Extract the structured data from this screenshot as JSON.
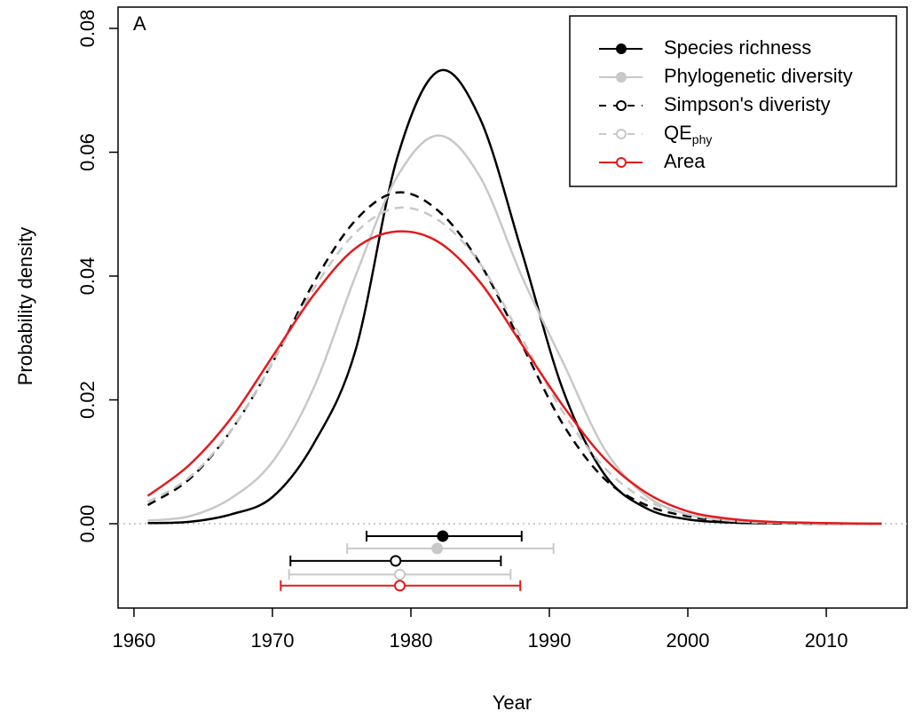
{
  "chart_data": {
    "type": "line",
    "panel_label": "A",
    "x_label": "Year",
    "y_label": "Probability density",
    "xlim": [
      1958.85,
      2015.83
    ],
    "ylim": [
      -0.01362,
      0.08344
    ],
    "xticks": [
      1960,
      1970,
      1980,
      1990,
      2000,
      2010
    ],
    "yticks": [
      {
        "value": 0,
        "label": "0.00"
      },
      {
        "value": 0.02,
        "label": "0.02"
      },
      {
        "value": 0.04,
        "label": "0.04"
      },
      {
        "value": 0.06,
        "label": "0.06"
      },
      {
        "value": 0.08,
        "label": "0.08"
      }
    ],
    "reference_line": 0,
    "legend_position": "top-right",
    "x": [
      1961,
      1964,
      1967,
      1970,
      1973,
      1976,
      1979,
      1982,
      1985,
      1988,
      1991,
      1994,
      1997,
      2000,
      2003,
      2006,
      2010,
      2014
    ],
    "series": [
      {
        "name": "Species richness",
        "color": "#000000",
        "dash": false,
        "marker": "filled",
        "values": [
          0.0001,
          0.0003,
          0.0015,
          0.0043,
          0.013,
          0.028,
          0.059,
          0.0731,
          0.0654,
          0.044,
          0.0215,
          0.0079,
          0.0025,
          0.0007,
          0.0002,
          5e-05,
          0,
          0
        ],
        "point": [
          1982.3,
          -0.002
        ],
        "interval": [
          1976.8,
          1988.0
        ]
      },
      {
        "name": "Phylogenetic diversity",
        "color": "#c8c8c8",
        "dash": false,
        "marker": "filled",
        "values": [
          0.0005,
          0.0012,
          0.0041,
          0.01,
          0.022,
          0.04,
          0.056,
          0.0627,
          0.056,
          0.04,
          0.026,
          0.012,
          0.0045,
          0.0015,
          0.0005,
          0.0001,
          0,
          0
        ],
        "point": [
          1981.9,
          -0.004
        ],
        "interval": [
          1975.4,
          1990.3
        ]
      },
      {
        "name": "Simpson's diveristy",
        "color": "#000000",
        "dash": true,
        "marker": "open",
        "values": [
          0.003,
          0.0072,
          0.015,
          0.026,
          0.039,
          0.049,
          0.0535,
          0.0505,
          0.042,
          0.029,
          0.016,
          0.0072,
          0.003,
          0.0012,
          0.0004,
          0.0001,
          0,
          0
        ],
        "point": [
          1978.9,
          -0.006
        ],
        "interval": [
          1971.3,
          1986.5
        ]
      },
      {
        "name": "QE",
        "name_sub": "phy",
        "color": "#c8c8c8",
        "dash": true,
        "marker": "open",
        "values": [
          0.0035,
          0.0075,
          0.015,
          0.026,
          0.038,
          0.047,
          0.051,
          0.049,
          0.042,
          0.03,
          0.018,
          0.009,
          0.0038,
          0.0015,
          0.0005,
          0.0002,
          0,
          0
        ],
        "point": [
          1979.2,
          -0.0082
        ],
        "interval": [
          1971.2,
          1987.2
        ]
      },
      {
        "name": "Area",
        "color": "#e41a1c",
        "dash": false,
        "marker": "open",
        "values": [
          0.0045,
          0.0095,
          0.017,
          0.027,
          0.037,
          0.0445,
          0.0472,
          0.0455,
          0.039,
          0.029,
          0.019,
          0.0105,
          0.005,
          0.002,
          0.0008,
          0.0003,
          0.0001,
          0
        ],
        "point": [
          1979.2,
          -0.01
        ],
        "interval": [
          1970.6,
          1987.9
        ]
      }
    ]
  }
}
